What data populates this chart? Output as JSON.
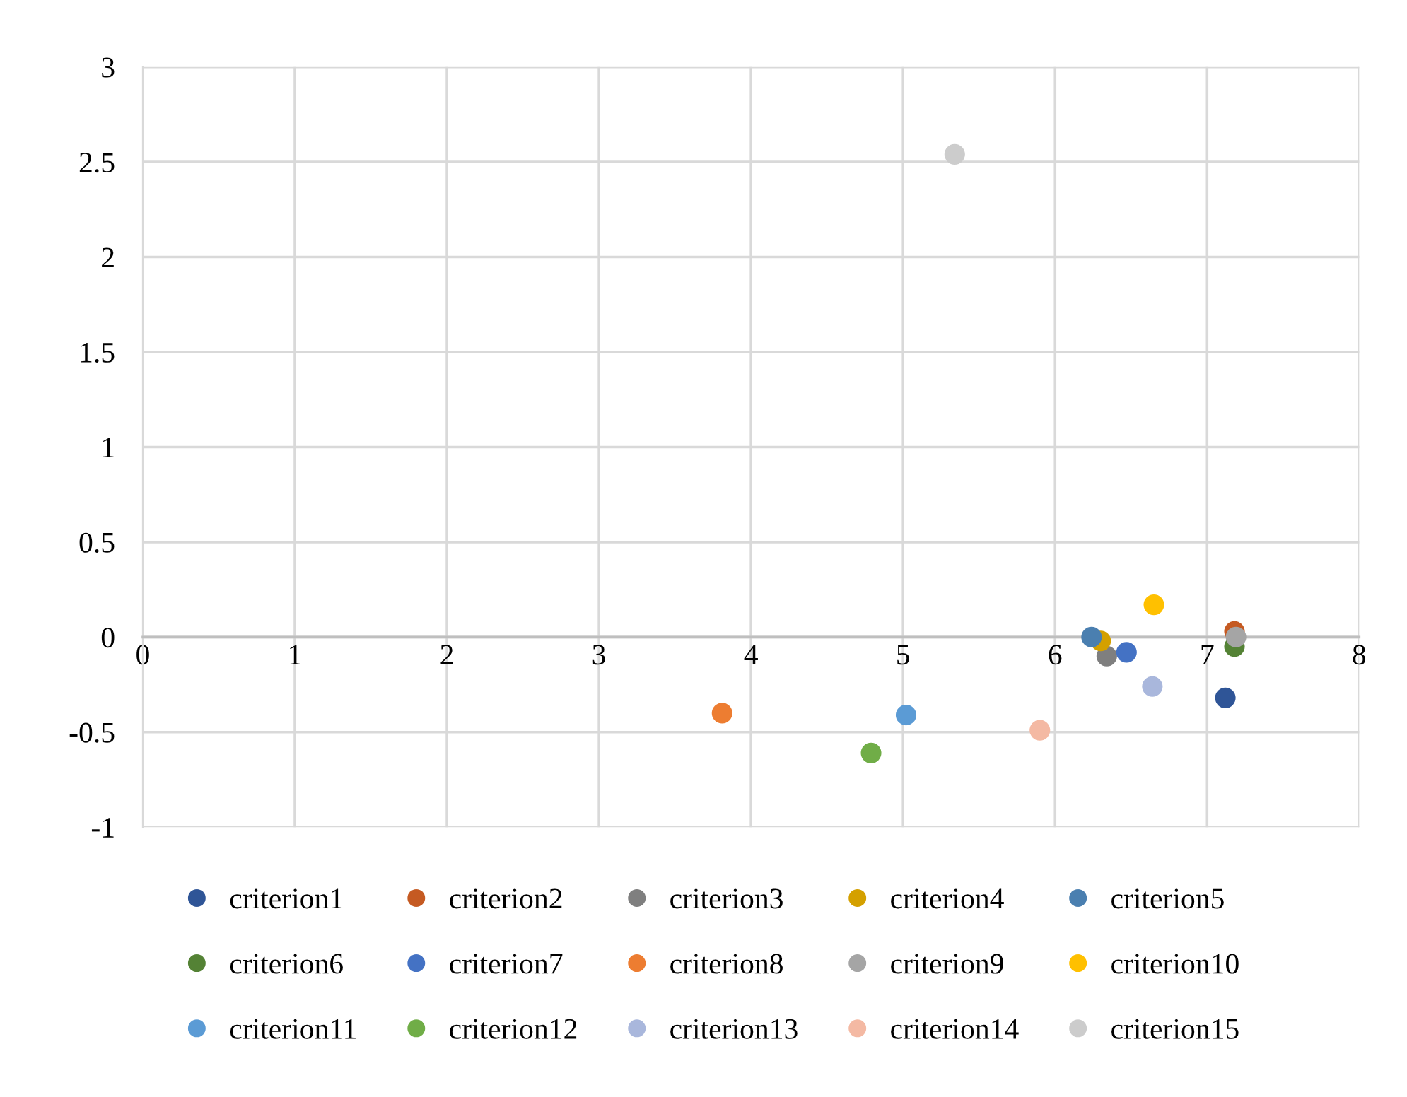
{
  "chart_data": {
    "type": "scatter",
    "series": [
      {
        "name": "criterion1",
        "color": "#2f5597",
        "x": [
          7.12
        ],
        "values": [
          -0.32
        ]
      },
      {
        "name": "criterion2",
        "color": "#c55a22",
        "x": [
          7.18
        ],
        "values": [
          0.03
        ]
      },
      {
        "name": "criterion3",
        "color": "#7f7f7f",
        "x": [
          6.34
        ],
        "values": [
          -0.1
        ]
      },
      {
        "name": "criterion4",
        "color": "#d4a000",
        "x": [
          6.3
        ],
        "values": [
          -0.02
        ]
      },
      {
        "name": "criterion5",
        "color": "#4a7fb0",
        "x": [
          6.24
        ],
        "values": [
          0.0
        ]
      },
      {
        "name": "criterion6",
        "color": "#548235",
        "x": [
          7.18
        ],
        "values": [
          -0.05
        ]
      },
      {
        "name": "criterion7",
        "color": "#4472c4",
        "x": [
          6.47
        ],
        "values": [
          -0.08
        ]
      },
      {
        "name": "criterion8",
        "color": "#ed7d31",
        "x": [
          3.81
        ],
        "values": [
          -0.4
        ]
      },
      {
        "name": "criterion9",
        "color": "#a5a5a5",
        "x": [
          7.19
        ],
        "values": [
          0.0
        ]
      },
      {
        "name": "criterion10",
        "color": "#ffc000",
        "x": [
          6.65
        ],
        "values": [
          0.17
        ]
      },
      {
        "name": "criterion11",
        "color": "#5b9bd5",
        "x": [
          5.02
        ],
        "values": [
          -0.41
        ]
      },
      {
        "name": "criterion12",
        "color": "#70ad47",
        "x": [
          4.79
        ],
        "values": [
          -0.61
        ]
      },
      {
        "name": "criterion13",
        "color": "#a9b7dc",
        "x": [
          6.64
        ],
        "values": [
          -0.26
        ]
      },
      {
        "name": "criterion14",
        "color": "#f4b9a3",
        "x": [
          5.9
        ],
        "values": [
          -0.49
        ]
      },
      {
        "name": "criterion15",
        "color": "#cccccc",
        "x": [
          5.34
        ],
        "values": [
          2.54
        ]
      }
    ],
    "xlim": [
      0,
      8
    ],
    "xticks": [
      0,
      1,
      2,
      3,
      4,
      5,
      6,
      7,
      8
    ],
    "ylim": [
      -1,
      3
    ],
    "yticks": [
      -1,
      -0.5,
      0,
      0.5,
      1,
      1.5,
      2,
      2.5,
      3
    ],
    "grid": true,
    "legend": "bottom",
    "marker": "circle"
  }
}
